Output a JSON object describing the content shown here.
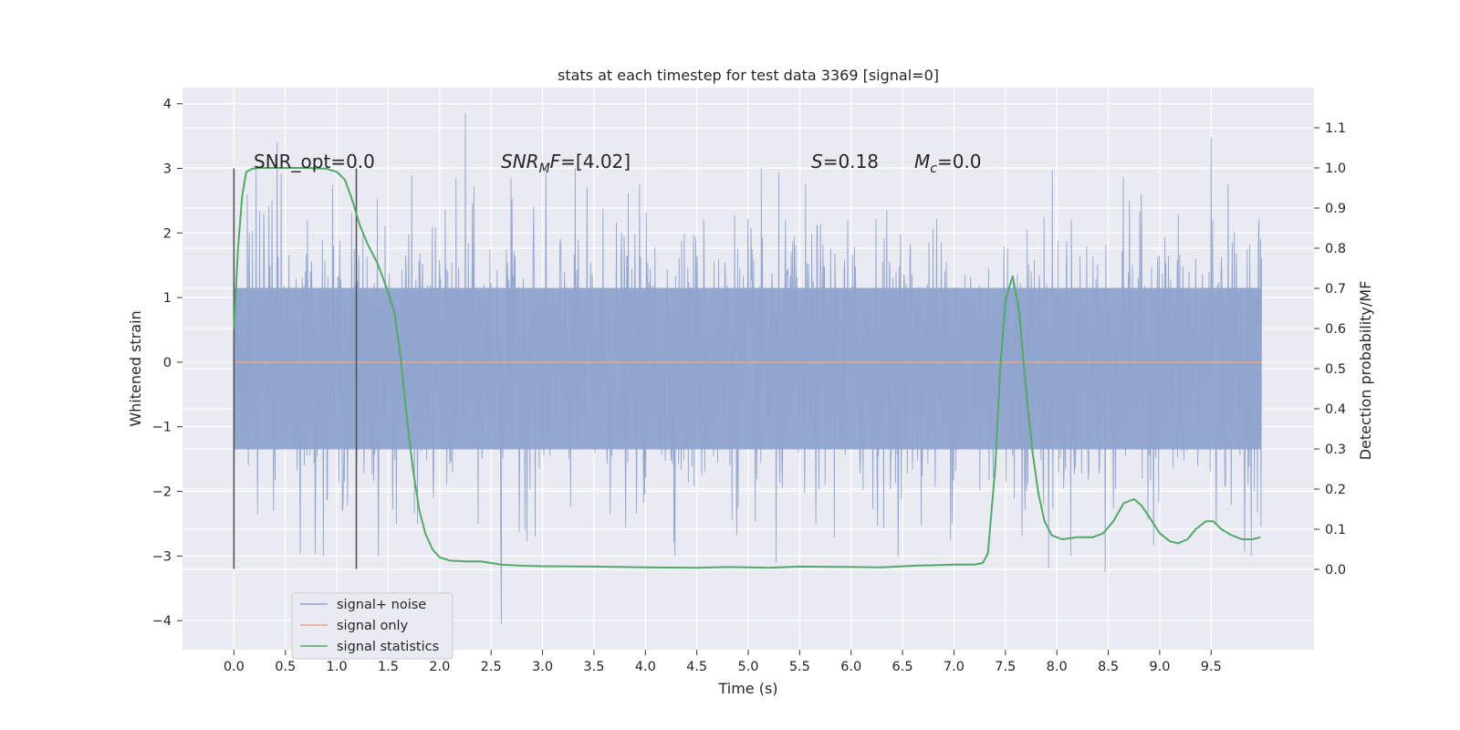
{
  "chart_data": {
    "type": "line",
    "title": "stats at each timestep for test data 3369 [signal=0]",
    "xlabel": "Time (s)",
    "ylabel_left": "Whitened strain",
    "ylabel_right": "Detection probability/MF",
    "xlim": [
      -0.5,
      10.5
    ],
    "ylim_left": [
      -4.45,
      4.25
    ],
    "ylim_right": [
      -0.2,
      1.2
    ],
    "xticks": [
      0.0,
      0.5,
      1.0,
      1.5,
      2.0,
      2.5,
      3.0,
      3.5,
      4.0,
      4.5,
      5.0,
      5.5,
      6.0,
      6.5,
      7.0,
      7.5,
      8.0,
      8.5,
      9.0,
      9.5
    ],
    "xtick_labels": [
      "0.0",
      "0.5",
      "1.0",
      "1.5",
      "2.0",
      "2.5",
      "3.0",
      "3.5",
      "4.0",
      "4.5",
      "5.0",
      "5.5",
      "6.0",
      "6.5",
      "7.0",
      "7.5",
      "8.0",
      "8.5",
      "9.0",
      "9.5"
    ],
    "yticks_left": [
      -4,
      -3,
      -2,
      -1,
      0,
      1,
      2,
      3,
      4
    ],
    "ytick_labels_left": [
      "−4",
      "−3",
      "−2",
      "−1",
      "0",
      "1",
      "2",
      "3",
      "4"
    ],
    "yticks_right": [
      0.0,
      0.1,
      0.2,
      0.3,
      0.4,
      0.5,
      0.6,
      0.7,
      0.8,
      0.9,
      1.0,
      1.1
    ],
    "ytick_labels_right": [
      "0.0",
      "0.1",
      "0.2",
      "0.3",
      "0.4",
      "0.5",
      "0.6",
      "0.7",
      "0.8",
      "0.9",
      "1.0",
      "1.1"
    ],
    "grid": true,
    "legend_position": "lower-left",
    "legend": [
      "signal+ noise",
      "signal only",
      "signal statistics"
    ],
    "colors": {
      "signal_noise": "#8fa3cc",
      "signal_only": "#e8a58a",
      "signal_statistics": "#55a868",
      "vline": "#555555",
      "background": "#eaeaf2",
      "grid": "#ffffff"
    },
    "annotations": {
      "snr_opt": "SNR_opt=0.0",
      "snr_mf_prefix": "SNR",
      "snr_mf_sub1": "M",
      "snr_mf_mid": "F",
      "snr_mf_value": "=[4.02]",
      "s_prefix": "S",
      "s_value": "=0.18",
      "mc_prefix": "M",
      "mc_sub": "c",
      "mc_value": "=0.0"
    },
    "vertical_lines": [
      {
        "x": 0.0,
        "ymin": -3.2,
        "ymax": 3.0
      },
      {
        "x": 1.19,
        "ymin": -3.2,
        "ymax": 3.0
      }
    ],
    "signal_noise": {
      "x_range": [
        0.0,
        9.99
      ],
      "core_band": [
        -1.35,
        1.15
      ],
      "extremes": [
        {
          "x": 2.25,
          "y": 3.85
        },
        {
          "x": 2.6,
          "y": -4.05
        },
        {
          "x": 0.42,
          "y": 3.4
        },
        {
          "x": 9.5,
          "y": 3.48
        },
        {
          "x": 8.47,
          "y": -3.25
        },
        {
          "x": 5.27,
          "y": -3.1
        },
        {
          "x": 7.92,
          "y": -3.18
        }
      ]
    },
    "signal_only": {
      "x": [
        0.0,
        9.99
      ],
      "y": [
        0.0,
        0.0
      ]
    },
    "signal_statistics": {
      "x": [
        0.0,
        0.04,
        0.08,
        0.12,
        0.18,
        0.25,
        0.35,
        0.5,
        0.7,
        0.9,
        1.0,
        1.08,
        1.15,
        1.22,
        1.3,
        1.4,
        1.5,
        1.56,
        1.62,
        1.68,
        1.74,
        1.8,
        1.86,
        1.93,
        2.0,
        2.1,
        2.25,
        2.4,
        2.6,
        2.8,
        3.0,
        3.5,
        4.0,
        4.5,
        4.8,
        5.0,
        5.2,
        5.5,
        6.0,
        6.3,
        6.6,
        7.0,
        7.2,
        7.28,
        7.33,
        7.4,
        7.45,
        7.5,
        7.57,
        7.63,
        7.7,
        7.76,
        7.82,
        7.88,
        7.95,
        8.05,
        8.2,
        8.35,
        8.45,
        8.55,
        8.65,
        8.75,
        8.82,
        8.9,
        9.0,
        9.1,
        9.18,
        9.27,
        9.35,
        9.45,
        9.52,
        9.6,
        9.7,
        9.8,
        9.9,
        9.98
      ],
      "y": [
        0.6,
        0.8,
        0.93,
        0.99,
        0.998,
        1.0,
        1.0,
        1.0,
        1.0,
        0.998,
        0.99,
        0.97,
        0.92,
        0.86,
        0.81,
        0.76,
        0.69,
        0.64,
        0.53,
        0.38,
        0.25,
        0.15,
        0.09,
        0.05,
        0.03,
        0.022,
        0.02,
        0.02,
        0.012,
        0.009,
        0.008,
        0.007,
        0.005,
        0.004,
        0.006,
        0.005,
        0.004,
        0.007,
        0.006,
        0.005,
        0.009,
        0.012,
        0.012,
        0.016,
        0.04,
        0.25,
        0.5,
        0.67,
        0.73,
        0.65,
        0.45,
        0.3,
        0.19,
        0.12,
        0.085,
        0.075,
        0.08,
        0.08,
        0.09,
        0.12,
        0.165,
        0.175,
        0.16,
        0.13,
        0.09,
        0.07,
        0.065,
        0.075,
        0.1,
        0.12,
        0.12,
        0.1,
        0.085,
        0.075,
        0.075,
        0.08
      ]
    }
  }
}
